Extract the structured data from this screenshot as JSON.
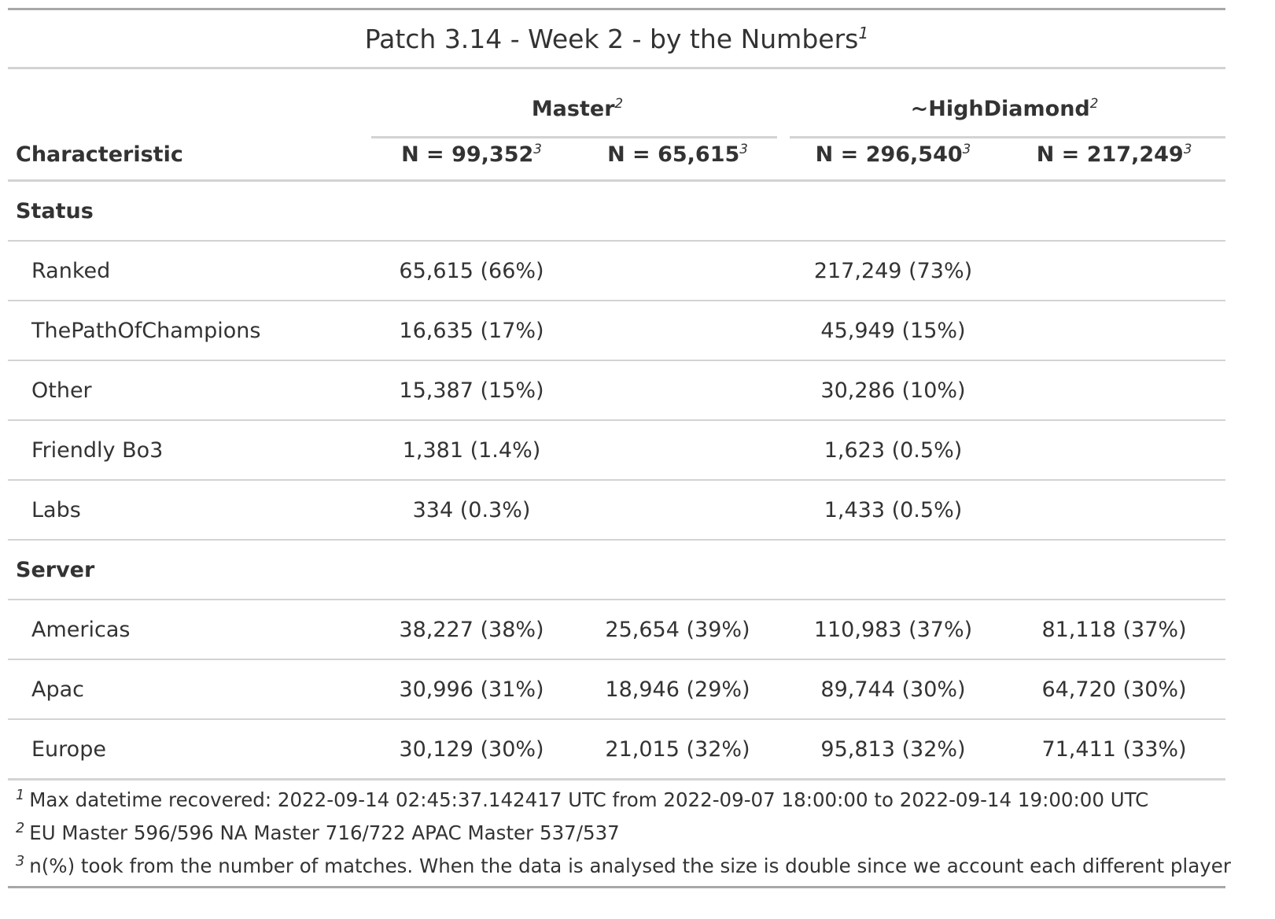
{
  "title": "Patch 3.14 - Week 2 - by the Numbers",
  "title_note": "1",
  "spanners": [
    {
      "label": "Master",
      "note": "2"
    },
    {
      "label": "~HighDiamond",
      "note": "2"
    }
  ],
  "header": {
    "characteristic": "Characteristic",
    "cols": [
      {
        "label": "N = 99,352",
        "note": "3"
      },
      {
        "label": "N = 65,615",
        "note": "3"
      },
      {
        "label": "N = 296,540",
        "note": "3"
      },
      {
        "label": "N = 217,249",
        "note": "3"
      }
    ]
  },
  "groups": [
    {
      "label": "Status",
      "rows": [
        {
          "label": "Ranked",
          "values": [
            "65,615 (66%)",
            "",
            "217,249 (73%)",
            ""
          ]
        },
        {
          "label": "ThePathOfChampions",
          "values": [
            "16,635 (17%)",
            "",
            "45,949 (15%)",
            ""
          ]
        },
        {
          "label": "Other",
          "values": [
            "15,387 (15%)",
            "",
            "30,286 (10%)",
            ""
          ]
        },
        {
          "label": "Friendly Bo3",
          "values": [
            "1,381 (1.4%)",
            "",
            "1,623 (0.5%)",
            ""
          ]
        },
        {
          "label": "Labs",
          "values": [
            "334 (0.3%)",
            "",
            "1,433 (0.5%)",
            ""
          ]
        }
      ]
    },
    {
      "label": "Server",
      "rows": [
        {
          "label": "Americas",
          "values": [
            "38,227 (38%)",
            "25,654 (39%)",
            "110,983 (37%)",
            "81,118 (37%)"
          ]
        },
        {
          "label": "Apac",
          "values": [
            "30,996 (31%)",
            "18,946 (29%)",
            "89,744 (30%)",
            "64,720 (30%)"
          ]
        },
        {
          "label": "Europe",
          "values": [
            "30,129 (30%)",
            "21,015 (32%)",
            "95,813 (32%)",
            "71,411 (33%)"
          ]
        }
      ]
    }
  ],
  "footnotes": [
    {
      "mark": "1",
      "text": "Max datetime recovered: 2022-09-14 02:45:37.142417 UTC from 2022-09-07 18:00:00 to 2022-09-14 19:00:00 UTC"
    },
    {
      "mark": "2",
      "text": "EU Master 596/596 NA Master 716/722 APAC Master 537/537"
    },
    {
      "mark": "3",
      "text": "n(%) took from the number of matches. When the data is analysed the size is double since we account each different player"
    }
  ]
}
